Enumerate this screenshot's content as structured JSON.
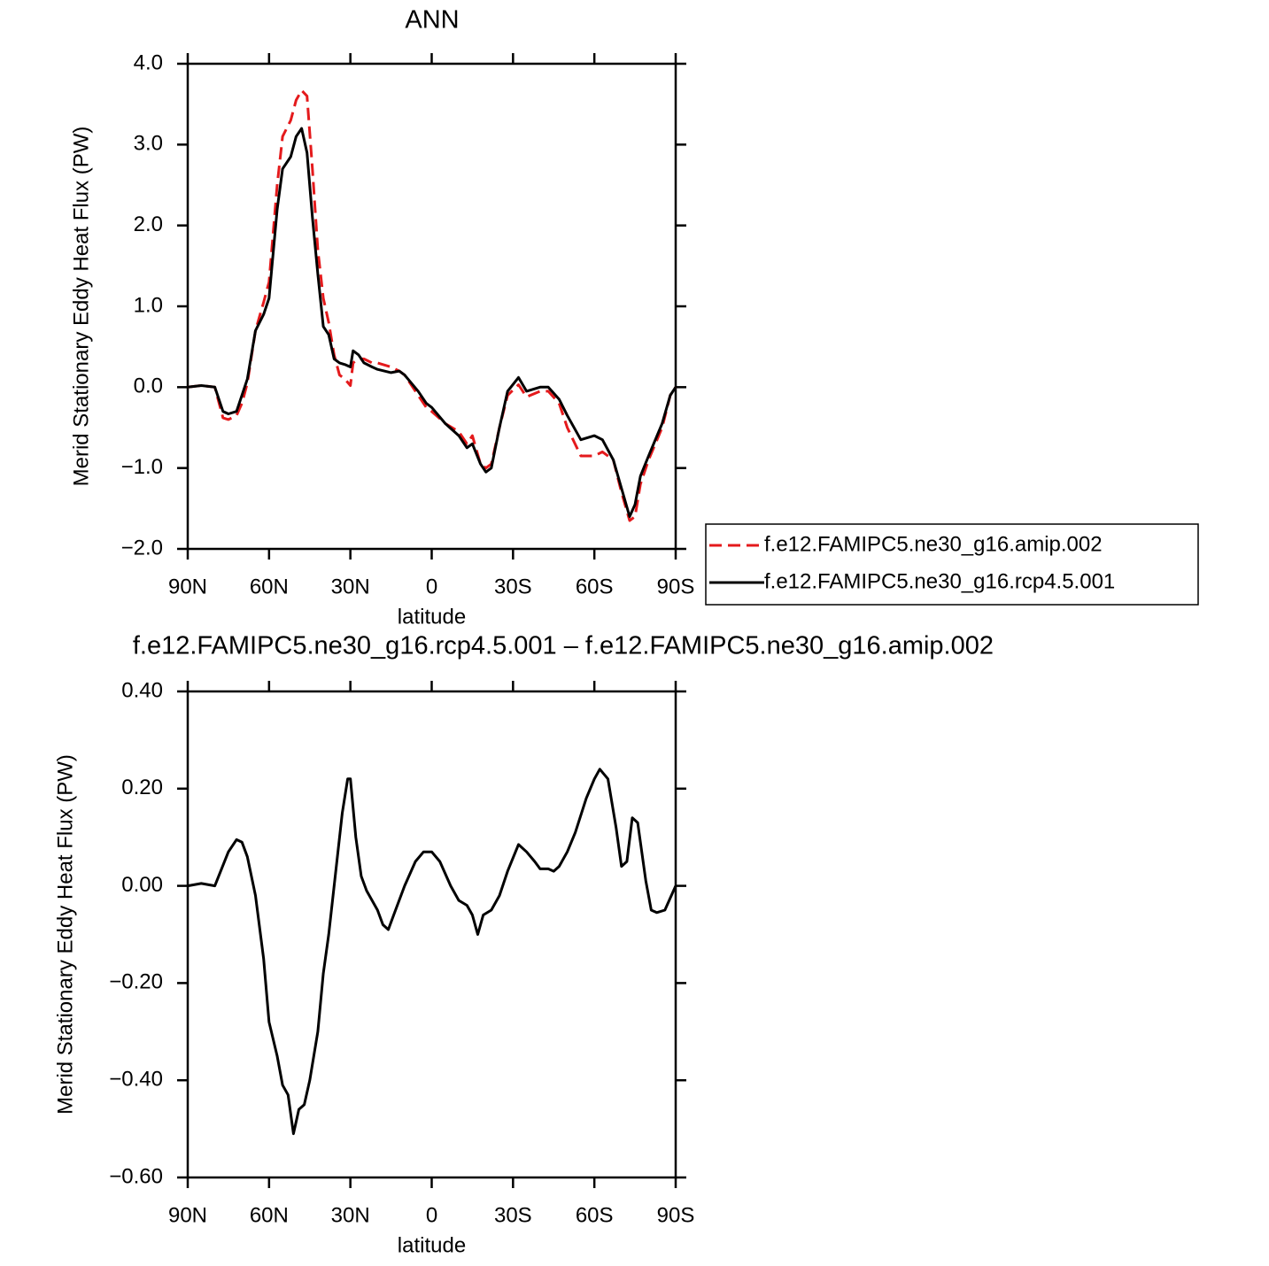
{
  "chart_data": [
    {
      "type": "line",
      "title": "ANN",
      "xlabel": "latitude",
      "ylabel": "Merid Stationary Eddy Heat Flux (PW)",
      "x": [
        90,
        85,
        80,
        77,
        75,
        72,
        70,
        68,
        65,
        62,
        60,
        57,
        55,
        52,
        50,
        48,
        46,
        44,
        42,
        40,
        38,
        36,
        34,
        32,
        30,
        29,
        27,
        25,
        22,
        20,
        15,
        12,
        10,
        5,
        2,
        0,
        -5,
        -10,
        -13,
        -15,
        -18,
        -20,
        -22,
        -25,
        -28,
        -32,
        -35,
        -40,
        -43,
        -47,
        -50,
        -55,
        -60,
        -63,
        -67,
        -70,
        -73,
        -75,
        -77,
        -80,
        -85,
        -88,
        -90
      ],
      "series": [
        {
          "name": "f.e12.FAMIPC5.ne30_g16.amip.002",
          "color": "#e41a1c",
          "dashed": true,
          "values": [
            0,
            0.02,
            0,
            -0.38,
            -0.4,
            -0.35,
            -0.2,
            0.05,
            0.7,
            1.05,
            1.3,
            2.5,
            3.1,
            3.3,
            3.55,
            3.67,
            3.6,
            2.7,
            1.7,
            1.1,
            0.8,
            0.4,
            0.15,
            0.1,
            0.02,
            0.3,
            0.35,
            0.35,
            0.3,
            0.3,
            0.25,
            0.2,
            0.15,
            -0.1,
            -0.25,
            -0.3,
            -0.45,
            -0.55,
            -0.7,
            -0.6,
            -0.95,
            -1.0,
            -0.95,
            -0.5,
            -0.1,
            0.03,
            -0.12,
            -0.05,
            -0.05,
            -0.2,
            -0.5,
            -0.85,
            -0.85,
            -0.8,
            -0.9,
            -1.3,
            -1.65,
            -1.6,
            -1.2,
            -0.9,
            -0.5,
            -0.1,
            0
          ]
        },
        {
          "name": "f.e12.FAMIPC5.ne30_g16.rcp4.5.001",
          "color": "#000000",
          "dashed": false,
          "values": [
            0,
            0.02,
            0,
            -0.3,
            -0.33,
            -0.3,
            -0.1,
            0.1,
            0.7,
            0.9,
            1.1,
            2.2,
            2.7,
            2.85,
            3.1,
            3.2,
            2.9,
            2.1,
            1.4,
            0.75,
            0.65,
            0.35,
            0.3,
            0.28,
            0.25,
            0.45,
            0.4,
            0.3,
            0.25,
            0.22,
            0.18,
            0.2,
            0.15,
            -0.05,
            -0.2,
            -0.25,
            -0.45,
            -0.6,
            -0.75,
            -0.7,
            -0.95,
            -1.05,
            -1.0,
            -0.5,
            -0.05,
            0.12,
            -0.05,
            0.0,
            0.0,
            -0.15,
            -0.35,
            -0.65,
            -0.6,
            -0.65,
            -0.9,
            -1.25,
            -1.6,
            -1.45,
            -1.1,
            -0.85,
            -0.45,
            -0.1,
            0
          ]
        }
      ],
      "xlim": [
        90,
        -90
      ],
      "xticks": [
        {
          "value": 90,
          "label": "90N"
        },
        {
          "value": 60,
          "label": "60N"
        },
        {
          "value": 30,
          "label": "30N"
        },
        0,
        {
          "value": -30,
          "label": "30S"
        },
        {
          "value": -60,
          "label": "60S"
        },
        {
          "value": -90,
          "label": "90S"
        }
      ],
      "ylim": [
        -2,
        4
      ],
      "yticks": [
        {
          "value": -2,
          "label": "−2.0"
        },
        {
          "value": -1,
          "label": "−1.0"
        },
        {
          "value": 0,
          "label": "0.0"
        },
        {
          "value": 1,
          "label": "1.0"
        },
        {
          "value": 2,
          "label": "2.0"
        },
        {
          "value": 3,
          "label": "3.0"
        },
        {
          "value": 4,
          "label": "4.0"
        }
      ],
      "legend": "right"
    },
    {
      "type": "line",
      "title": "f.e12.FAMIPC5.ne30_g16.rcp4.5.001 – f.e12.FAMIPC5.ne30_g16.amip.002",
      "xlabel": "latitude",
      "ylabel": "Merid Stationary Eddy Heat Flux (PW)",
      "x": [
        90,
        85,
        80,
        75,
        72,
        70,
        68,
        65,
        62,
        60,
        57,
        55,
        53,
        51,
        49,
        47,
        45,
        42,
        40,
        38,
        35,
        33,
        31,
        30,
        28,
        26,
        24,
        20,
        18,
        16,
        14,
        10,
        6,
        3,
        0,
        -3,
        -7,
        -10,
        -13,
        -15,
        -17,
        -19,
        -22,
        -25,
        -28,
        -32,
        -35,
        -38,
        -40,
        -43,
        -45,
        -47,
        -50,
        -53,
        -57,
        -60,
        -62,
        -65,
        -68,
        -70,
        -72,
        -74,
        -76,
        -79,
        -81,
        -83,
        -86,
        -90
      ],
      "values": [
        0,
        0.005,
        0,
        0.07,
        0.095,
        0.09,
        0.06,
        -0.02,
        -0.15,
        -0.28,
        -0.35,
        -0.41,
        -0.43,
        -0.51,
        -0.46,
        -0.45,
        -0.4,
        -0.3,
        -0.18,
        -0.1,
        0.05,
        0.15,
        0.22,
        0.22,
        0.1,
        0.02,
        -0.01,
        -0.05,
        -0.08,
        -0.09,
        -0.06,
        0.0,
        0.05,
        0.07,
        0.07,
        0.05,
        0.0,
        -0.03,
        -0.04,
        -0.06,
        -0.1,
        -0.06,
        -0.05,
        -0.02,
        0.03,
        0.085,
        0.07,
        0.05,
        0.035,
        0.035,
        0.03,
        0.04,
        0.07,
        0.11,
        0.18,
        0.22,
        0.24,
        0.22,
        0.12,
        0.04,
        0.05,
        0.14,
        0.13,
        0.01,
        -0.05,
        -0.055,
        -0.05,
        0
      ],
      "color": "#000000",
      "xlim": [
        90,
        -90
      ],
      "xticks": [
        {
          "value": 90,
          "label": "90N"
        },
        {
          "value": 60,
          "label": "60N"
        },
        {
          "value": 30,
          "label": "30N"
        },
        0,
        {
          "value": -30,
          "label": "30S"
        },
        {
          "value": -60,
          "label": "60S"
        },
        {
          "value": -90,
          "label": "90S"
        }
      ],
      "ylim": [
        -0.6,
        0.4
      ],
      "yticks": [
        {
          "value": -0.6,
          "label": "−0.60"
        },
        {
          "value": -0.4,
          "label": "−0.40"
        },
        {
          "value": -0.2,
          "label": "−0.20"
        },
        {
          "value": 0,
          "label": "0.00"
        },
        {
          "value": 0.2,
          "label": "0.20"
        },
        {
          "value": 0.4,
          "label": "0.40"
        }
      ]
    }
  ]
}
